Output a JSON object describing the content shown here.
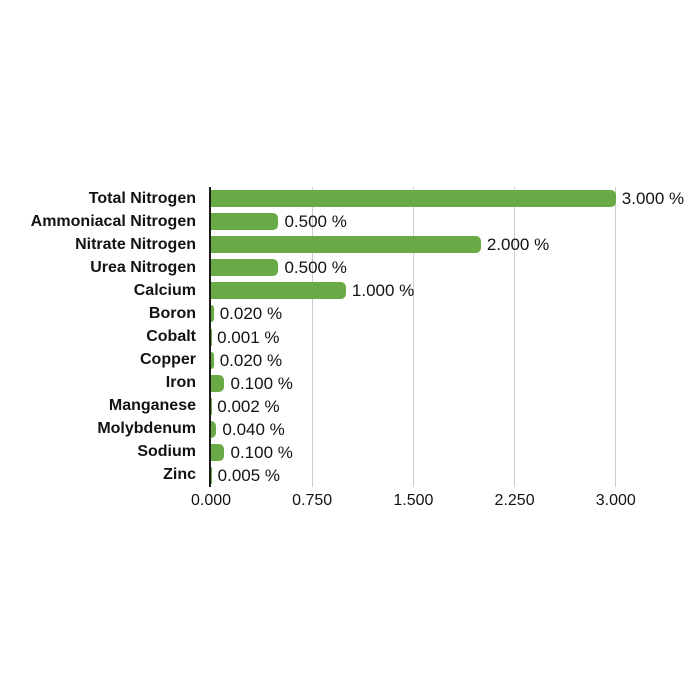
{
  "chart_data": {
    "type": "bar",
    "orientation": "horizontal",
    "title": "",
    "xlabel": "",
    "ylabel": "",
    "unit": "%",
    "categories": [
      "Total Nitrogen",
      "Ammoniacal Nitrogen",
      "Nitrate Nitrogen",
      "Urea Nitrogen",
      "Calcium",
      "Boron",
      "Cobalt",
      "Copper",
      "Iron",
      "Manganese",
      "Molybdenum",
      "Sodium",
      "Zinc"
    ],
    "values": [
      3.0,
      0.5,
      2.0,
      0.5,
      1.0,
      0.02,
      0.001,
      0.02,
      0.1,
      0.002,
      0.04,
      0.1,
      0.005
    ],
    "value_labels": [
      "3.000 %",
      "0.500 %",
      "2.000 %",
      "0.500 %",
      "1.000 %",
      "0.020 %",
      "0.001 %",
      "0.020 %",
      "0.100 %",
      "0.002 %",
      "0.040 %",
      "0.100 %",
      "0.005 %"
    ],
    "x_ticks": [
      0.0,
      0.75,
      1.5,
      2.25,
      3.0
    ],
    "x_tick_labels": [
      "0.000",
      "0.750",
      "1.500",
      "2.250",
      "3.000"
    ],
    "xlim": [
      0,
      3.35
    ],
    "grid": true,
    "legend": false,
    "bar_color": "#6aaa46",
    "gridline_color": "#cdcdcd",
    "axis_color": "#1c1c1c",
    "text_color": "#131313"
  }
}
